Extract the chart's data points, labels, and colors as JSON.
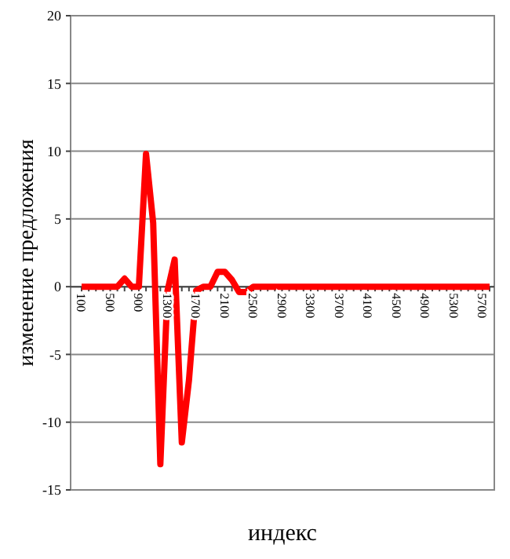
{
  "chart_data": {
    "type": "line",
    "xlabel": "индекс",
    "ylabel": "изменение предложения",
    "categories": [
      "100",
      null,
      null,
      null,
      "500",
      null,
      null,
      null,
      "900",
      null,
      null,
      null,
      "1300",
      null,
      null,
      null,
      "1700",
      null,
      null,
      null,
      "2100",
      null,
      null,
      null,
      "2500",
      null,
      null,
      null,
      "2900",
      null,
      null,
      null,
      "3300",
      null,
      null,
      null,
      "3700",
      null,
      null,
      null,
      "4100",
      null,
      null,
      null,
      "4500",
      null,
      null,
      null,
      "4900",
      null,
      null,
      null,
      "5300",
      null,
      null,
      null,
      "5700",
      null
    ],
    "series": [
      {
        "color": "#ff0000",
        "values": [
          0,
          0,
          0,
          0,
          0,
          0,
          0.6,
          0,
          0,
          9.8,
          4.7,
          -13.1,
          -0.3,
          2,
          -11.5,
          -6.9,
          -0.3,
          0,
          0,
          1.1,
          1.1,
          0.5,
          -0.4,
          -0.4,
          0,
          0,
          0,
          0,
          0,
          0,
          0,
          0,
          0,
          0,
          0,
          0,
          0,
          0,
          0,
          0,
          0,
          0,
          0,
          0,
          0,
          0,
          0,
          0,
          0,
          0,
          0,
          0,
          0,
          0,
          0,
          0,
          0,
          0
        ]
      }
    ],
    "ylim": [
      -15,
      20
    ],
    "yticks": [
      -15,
      -10,
      -5,
      0,
      5,
      10,
      15,
      20
    ],
    "grid": "y",
    "marker": "none",
    "line_style": "solid"
  }
}
